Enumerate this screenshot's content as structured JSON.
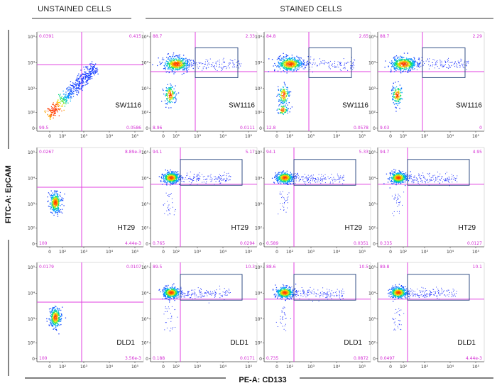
{
  "figure": {
    "header_unstained": "UNSTAINED CELLS",
    "header_stained": "STAINED CELLS",
    "y_axis_title": "FITC-A: EpCAM",
    "x_axis_title": "PE-A: CD133"
  },
  "colors": {
    "gate_line": "#e040e0",
    "corner_text": "#d42cd4",
    "gate_box": "#1f3f7a",
    "density_palette": [
      "#2030ff",
      "#00b0ff",
      "#00e060",
      "#f0f000",
      "#ff8000",
      "#ff2000"
    ]
  },
  "chart_data": [
    {
      "type": "scatter",
      "row": 0,
      "col": 0,
      "cell_line": "SW1116",
      "condition": "unstained",
      "ul": "0.0391",
      "ur": "0.415",
      "ll": "99.5",
      "lr": "0.0586",
      "gate_box": false,
      "y_ticks": [
        "10⁵",
        "10⁴",
        "10³",
        "10²",
        "0"
      ],
      "x_ticks": [
        "0",
        "10²",
        "10³",
        "10⁴",
        "10⁵"
      ],
      "population": "diagonal"
    },
    {
      "type": "scatter",
      "row": 0,
      "col": 1,
      "cell_line": "SW1116",
      "condition": "stained",
      "ul": "88.7",
      "ur": "2.33",
      "ll": "8.96",
      "lr": "0.0111",
      "gate_box": true,
      "y_ticks": [
        "10⁵",
        "10⁴",
        "10³",
        "10²",
        "0"
      ],
      "x_ticks": [
        "0",
        "10²",
        "10³",
        "10⁴",
        "10⁵"
      ],
      "population": "sw_stained"
    },
    {
      "type": "scatter",
      "row": 0,
      "col": 2,
      "cell_line": "SW1116",
      "condition": "stained",
      "ul": "84.8",
      "ur": "2.65",
      "ll": "12.8",
      "lr": "0.0578",
      "gate_box": true,
      "y_ticks": [
        "10⁵",
        "10⁴",
        "10³",
        "10²",
        "0"
      ],
      "x_ticks": [
        "0",
        "10²",
        "10³",
        "10⁴",
        "10⁵"
      ],
      "population": "sw_stained"
    },
    {
      "type": "scatter",
      "row": 0,
      "col": 3,
      "cell_line": "SW1116",
      "condition": "stained",
      "ul": "88.7",
      "ur": "2.29",
      "ll": "9.03",
      "lr": "0",
      "gate_box": true,
      "y_ticks": [
        "10⁵",
        "10⁴",
        "10³",
        "10²",
        "0"
      ],
      "x_ticks": [
        "0",
        "10²",
        "10³",
        "10⁴",
        "10⁵"
      ],
      "population": "sw_stained"
    },
    {
      "type": "scatter",
      "row": 1,
      "col": 0,
      "cell_line": "HT29",
      "condition": "unstained",
      "ul": "0.0267",
      "ur": "8.89e-3",
      "ll": "100",
      "lr": "4.44e-3",
      "gate_box": false,
      "y_ticks": [
        "10⁵",
        "10⁴",
        "10³",
        "10²",
        "0"
      ],
      "x_ticks": [
        "0",
        "10²",
        "10³",
        "10⁴",
        "10⁵"
      ],
      "population": "blob"
    },
    {
      "type": "scatter",
      "row": 1,
      "col": 1,
      "cell_line": "HT29",
      "condition": "stained",
      "ul": "94.1",
      "ur": "5.17",
      "ll": "0.765",
      "lr": "0.0294",
      "gate_box": true,
      "y_ticks": [
        "10⁵",
        "10⁴",
        "10³",
        "10²",
        "0"
      ],
      "x_ticks": [
        "0",
        "10²",
        "10³",
        "10⁴",
        "10⁵"
      ],
      "population": "stained_cluster"
    },
    {
      "type": "scatter",
      "row": 1,
      "col": 2,
      "cell_line": "HT29",
      "condition": "stained",
      "ul": "94.1",
      "ur": "5.33",
      "ll": "0.589",
      "lr": "0.0351",
      "gate_box": true,
      "y_ticks": [
        "10⁵",
        "10⁴",
        "10³",
        "10²",
        "0"
      ],
      "x_ticks": [
        "0",
        "10²",
        "10³",
        "10⁴",
        "10⁵"
      ],
      "population": "stained_cluster"
    },
    {
      "type": "scatter",
      "row": 1,
      "col": 3,
      "cell_line": "HT29",
      "condition": "stained",
      "ul": "94.7",
      "ur": "4.95",
      "ll": "0.335",
      "lr": "0.0127",
      "gate_box": true,
      "y_ticks": [
        "10⁵",
        "10⁴",
        "10³",
        "10²",
        "0"
      ],
      "x_ticks": [
        "0",
        "10²",
        "10³",
        "10⁴",
        "10⁵"
      ],
      "population": "stained_cluster"
    },
    {
      "type": "scatter",
      "row": 2,
      "col": 0,
      "cell_line": "DLD1",
      "condition": "unstained",
      "ul": "0.0179",
      "ur": "0.0107",
      "ll": "100",
      "lr": "3.56e-3",
      "gate_box": false,
      "y_ticks": [
        "10⁵",
        "10⁴",
        "10³",
        "10²",
        "0"
      ],
      "x_ticks": [
        "0",
        "10²",
        "10³",
        "10⁴",
        "10⁵"
      ],
      "population": "blob"
    },
    {
      "type": "scatter",
      "row": 2,
      "col": 1,
      "cell_line": "DLD1",
      "condition": "stained",
      "ul": "89.5",
      "ur": "10.3",
      "ll": "0.188",
      "lr": "0.0171",
      "gate_box": true,
      "y_ticks": [
        "10⁵",
        "10⁴",
        "10³",
        "10²",
        "0"
      ],
      "x_ticks": [
        "0",
        "10²",
        "10³",
        "10⁴",
        "10⁵"
      ],
      "population": "stained_cluster"
    },
    {
      "type": "scatter",
      "row": 2,
      "col": 2,
      "cell_line": "DLD1",
      "condition": "stained",
      "ul": "88.6",
      "ur": "10.5",
      "ll": "0.735",
      "lr": "0.0872",
      "gate_box": true,
      "y_ticks": [
        "10⁵",
        "10⁴",
        "10³",
        "10²",
        "0"
      ],
      "x_ticks": [
        "0",
        "10²",
        "10³",
        "10⁴",
        "10⁵"
      ],
      "population": "stained_cluster"
    },
    {
      "type": "scatter",
      "row": 2,
      "col": 3,
      "cell_line": "DLD1",
      "condition": "stained",
      "ul": "89.8",
      "ur": "10.1",
      "ll": "0.0497",
      "lr": "4.44e-3",
      "gate_box": true,
      "y_ticks": [
        "10⁵",
        "10⁴",
        "10³",
        "10²",
        "0"
      ],
      "x_ticks": [
        "0",
        "10²",
        "10³",
        "10⁴",
        "10⁵"
      ],
      "population": "stained_cluster"
    }
  ]
}
